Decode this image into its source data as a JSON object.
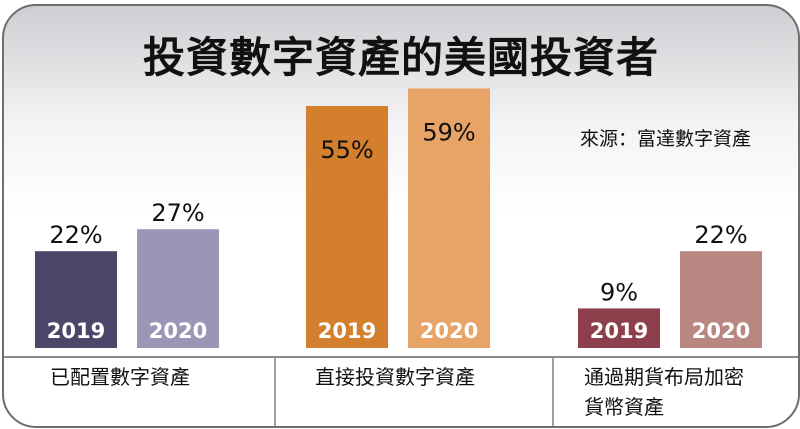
{
  "title": "投資數字資產的美國投資者",
  "source": "來源：富達數字資產",
  "chart_data": {
    "type": "bar",
    "title": "投資數字資產的美國投資者",
    "unit": "%",
    "ylim": [
      0,
      60
    ],
    "groups": [
      {
        "label": [
          "已配置數字資產"
        ],
        "years": [
          "2019",
          "2020"
        ],
        "values": [
          22,
          27
        ],
        "colors": [
          "#4a4768",
          "#9996b6"
        ]
      },
      {
        "label": [
          "直接投資數字資產"
        ],
        "years": [
          "2019",
          "2020"
        ],
        "values": [
          55,
          59
        ],
        "colors": [
          "#d47f2d",
          "#e7a466"
        ]
      },
      {
        "label": [
          "通過期貨布局加密",
          "貨幣資產"
        ],
        "years": [
          "2019",
          "2020"
        ],
        "values": [
          9,
          22
        ],
        "colors": [
          "#8d3f4b",
          "#b88782"
        ]
      }
    ]
  }
}
